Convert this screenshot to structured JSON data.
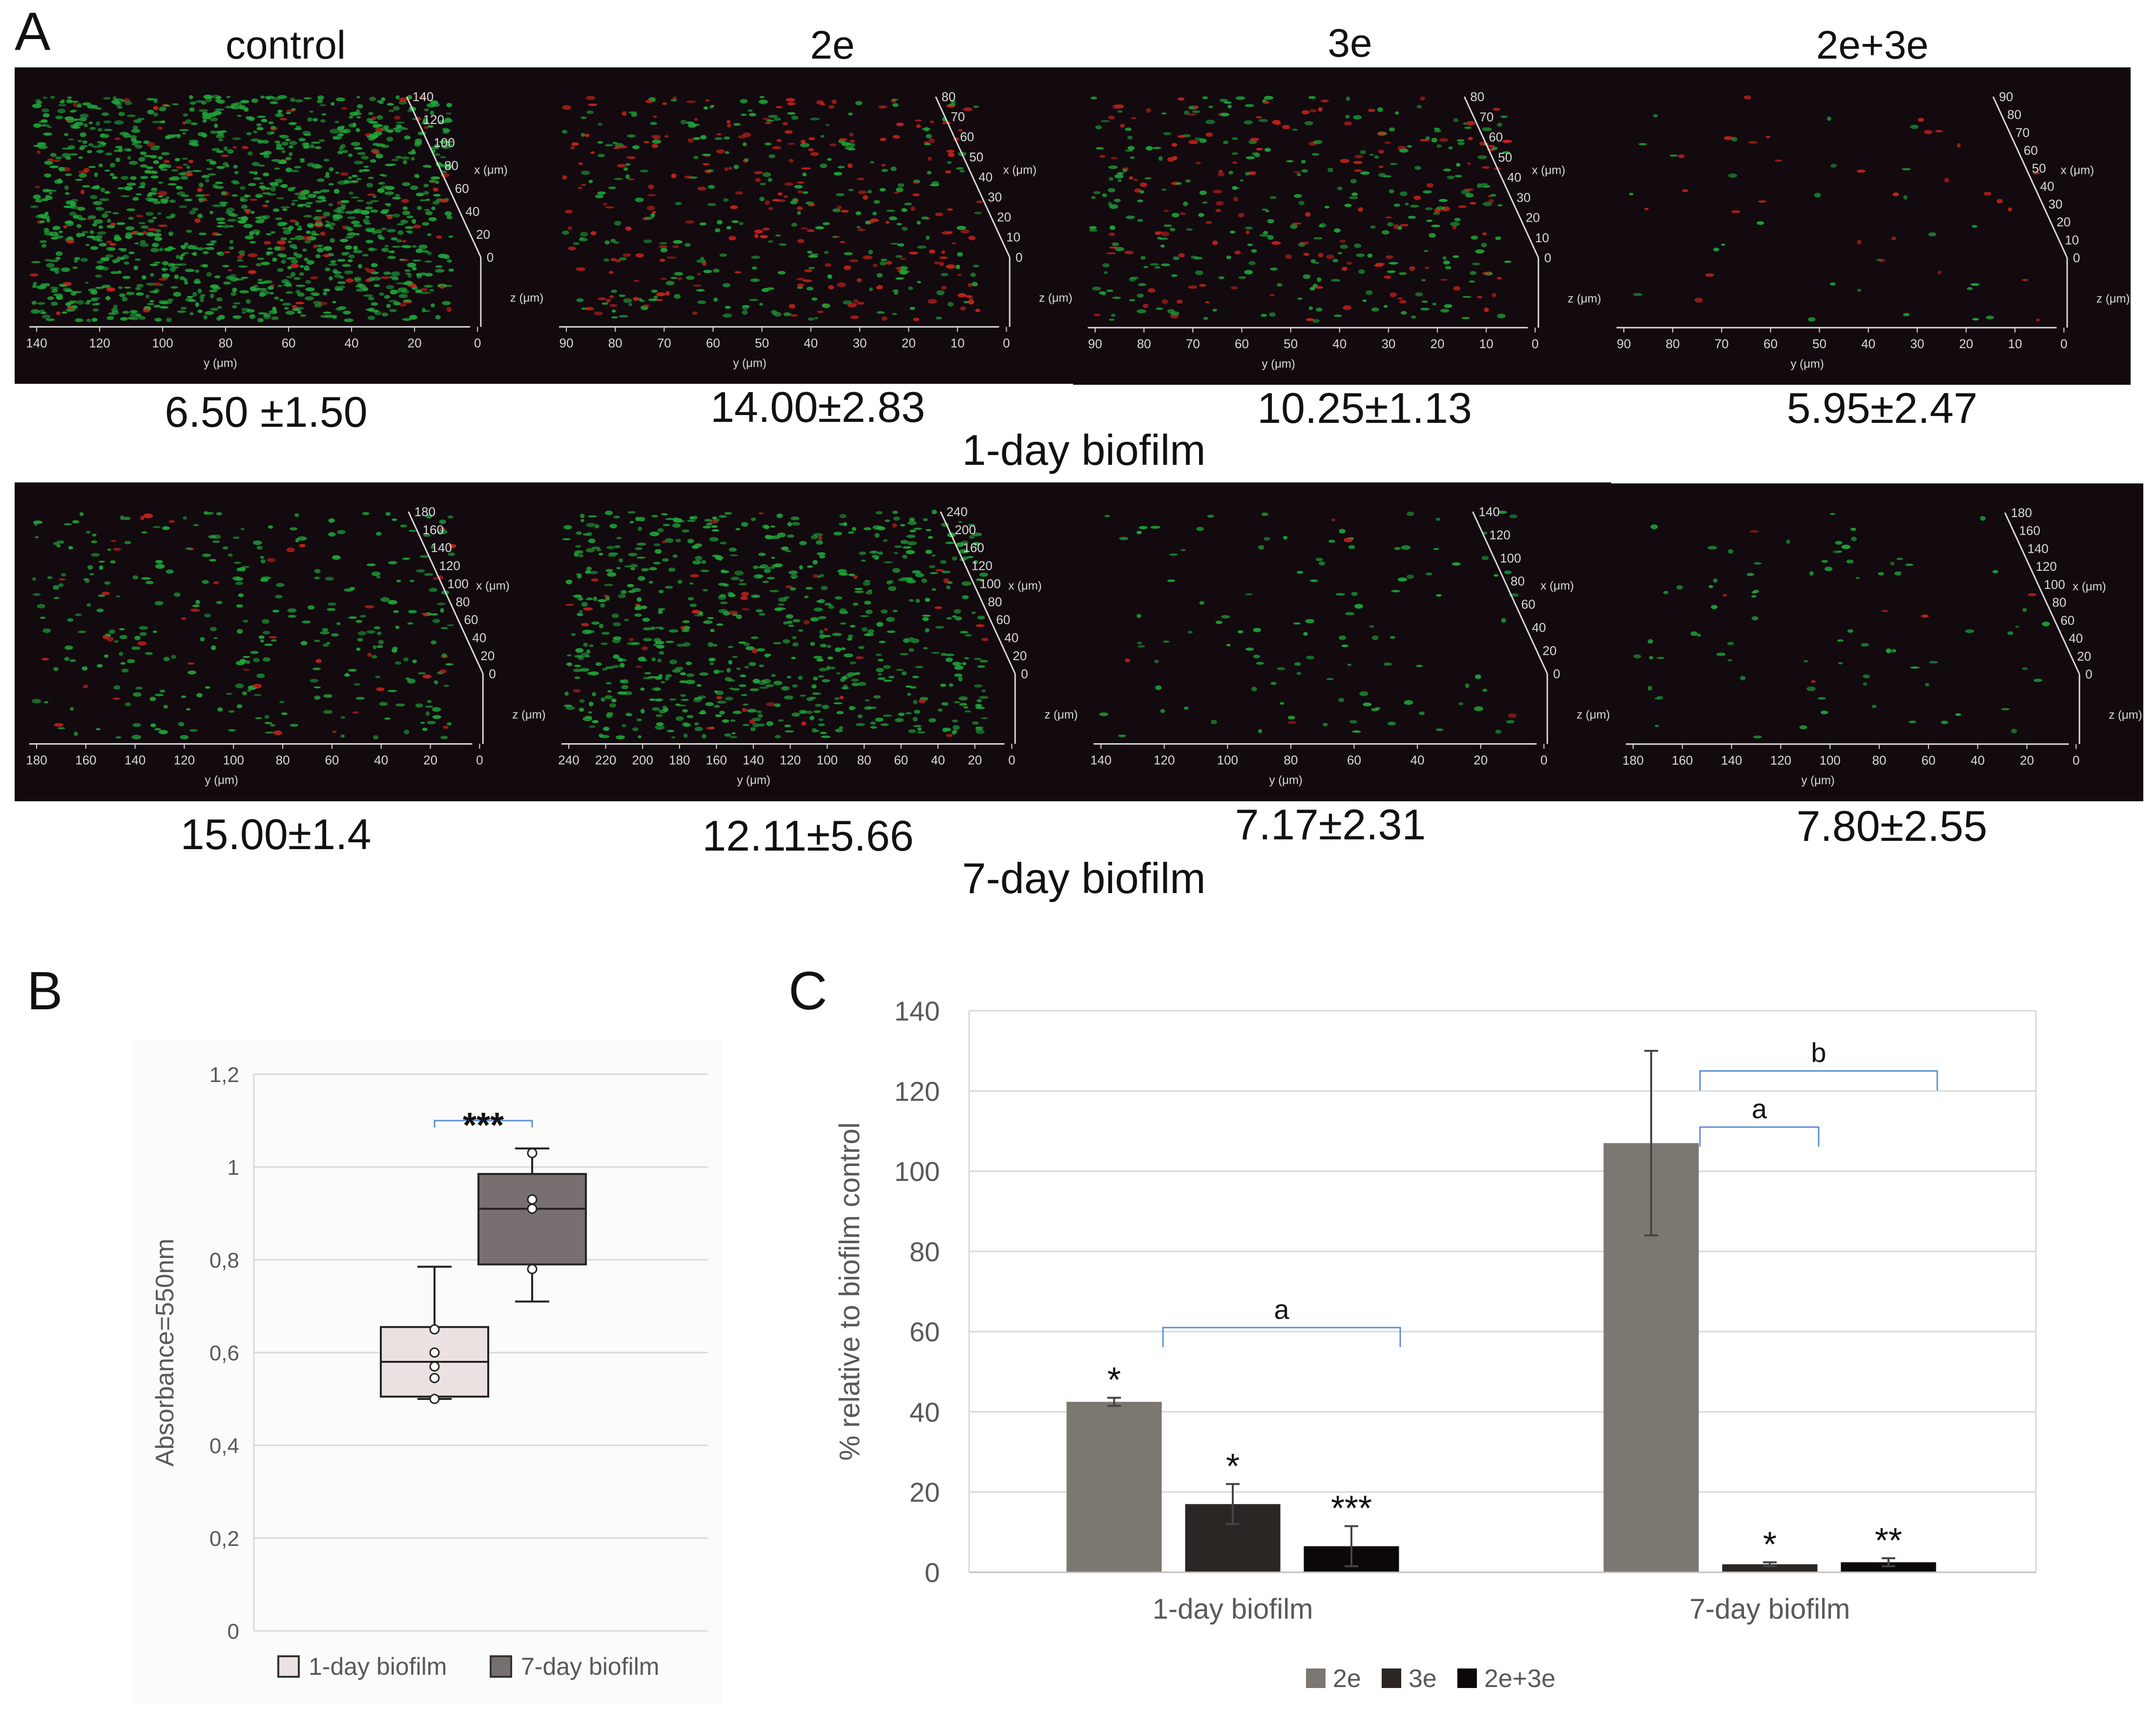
{
  "panel_a": {
    "letter": "A",
    "columns": [
      "control",
      "2e",
      "3e",
      "2e+3e"
    ],
    "rows": [
      {
        "caption": "1-day biofilm",
        "stats": [
          "6.50 ±1.50",
          "14.00±2.83",
          "10.25±1.13",
          "5.95±2.47"
        ],
        "y_ticks": [
          [
            "140",
            "120",
            "100",
            "80",
            "60",
            "40",
            "20",
            "0"
          ],
          [
            "90",
            "80",
            "70",
            "60",
            "50",
            "40",
            "30",
            "20",
            "10",
            "0"
          ],
          [
            "90",
            "80",
            "70",
            "60",
            "50",
            "40",
            "30",
            "20",
            "10",
            "0"
          ],
          [
            "90",
            "80",
            "70",
            "60",
            "50",
            "40",
            "30",
            "20",
            "10",
            "0"
          ]
        ],
        "x_ticks": [
          [
            "140",
            "120",
            "100",
            "80",
            "60",
            "40",
            "20",
            "0"
          ],
          [
            "80",
            "70",
            "60",
            "50",
            "40",
            "30",
            "20",
            "10",
            "0"
          ],
          [
            "80",
            "70",
            "60",
            "50",
            "40",
            "30",
            "20",
            "10",
            "0"
          ],
          [
            "90",
            "80",
            "70",
            "60",
            "50",
            "40",
            "30",
            "20",
            "10",
            "0"
          ]
        ],
        "density": [
          1.0,
          0.35,
          0.3,
          0.04
        ],
        "red_ratio": [
          0.08,
          0.45,
          0.35,
          0.5
        ]
      },
      {
        "caption": "7-day biofilm",
        "stats": [
          "15.00±1.4",
          "12.11±5.66",
          "7.17±2.31",
          "7.80±2.55"
        ],
        "y_ticks": [
          [
            "180",
            "160",
            "140",
            "120",
            "100",
            "80",
            "60",
            "40",
            "20",
            "0"
          ],
          [
            "240",
            "220",
            "200",
            "180",
            "160",
            "140",
            "120",
            "100",
            "80",
            "60",
            "40",
            "20",
            "0"
          ],
          [
            "140",
            "120",
            "100",
            "80",
            "60",
            "40",
            "20",
            "0"
          ],
          [
            "180",
            "160",
            "140",
            "120",
            "100",
            "80",
            "60",
            "40",
            "20",
            "0"
          ]
        ],
        "x_ticks": [
          [
            "180",
            "160",
            "140",
            "120",
            "100",
            "80",
            "60",
            "40",
            "20",
            "0"
          ],
          [
            "240",
            "200",
            "160",
            "120",
            "100",
            "80",
            "60",
            "40",
            "20",
            "0"
          ],
          [
            "140",
            "120",
            "100",
            "80",
            "60",
            "40",
            "20",
            "0"
          ],
          [
            "180",
            "160",
            "140",
            "120",
            "100",
            "80",
            "60",
            "40",
            "20",
            "0"
          ]
        ],
        "density": [
          0.25,
          0.55,
          0.08,
          0.06
        ],
        "red_ratio": [
          0.15,
          0.05,
          0.05,
          0.1
        ]
      }
    ],
    "axis_labels": {
      "y": "y (μm)",
      "x": "x (μm)",
      "z": "z (μm)"
    },
    "colors": {
      "background": "#120a0e",
      "green": "#1fa83a",
      "red": "#c8221c",
      "axis": "#d9d9d9"
    }
  },
  "chart_data": [
    {
      "panel": "B",
      "type": "box",
      "ylabel": "Absorbance=550nm",
      "ylim": [
        0,
        1.2
      ],
      "yticks": [
        "0",
        "0,2",
        "0,4",
        "0,6",
        "0,8",
        "1",
        "1,2"
      ],
      "grid": true,
      "legend_position": "bottom",
      "series": [
        {
          "name": "1-day biofilm",
          "color": "#ece1e1",
          "whisker_low": 0.5,
          "q1": 0.505,
          "median": 0.58,
          "q3": 0.655,
          "whisker_high": 0.785,
          "points": [
            0.5,
            0.545,
            0.57,
            0.6,
            0.65
          ]
        },
        {
          "name": "7-day biofilm",
          "color": "#787070",
          "whisker_low": 0.71,
          "q1": 0.79,
          "median": 0.91,
          "q3": 0.985,
          "whisker_high": 1.04,
          "points": [
            0.78,
            0.91,
            0.93,
            1.03
          ]
        }
      ],
      "annotations": [
        {
          "text": "***",
          "between": [
            0,
            1
          ],
          "y": 1.1
        }
      ]
    },
    {
      "panel": "C",
      "type": "bar",
      "ylabel": "% relative to biofilm control",
      "ylim": [
        0,
        140
      ],
      "yticks": [
        "0",
        "20",
        "40",
        "60",
        "80",
        "100",
        "120",
        "140"
      ],
      "grid": true,
      "legend_position": "bottom",
      "categories": [
        "1-day biofilm",
        "7-day biofilm"
      ],
      "series": [
        {
          "name": "2e",
          "color": "#7d7771",
          "values": [
            42.5,
            107
          ],
          "errors": [
            1,
            23
          ]
        },
        {
          "name": "3e",
          "color": "#2b2623",
          "values": [
            17,
            2
          ],
          "errors": [
            5,
            0.5
          ]
        },
        {
          "name": "2e+3e",
          "color": "#0b0807",
          "values": [
            6.5,
            2.5
          ],
          "errors": [
            5,
            1
          ]
        }
      ],
      "significance": [
        [
          "*",
          "*",
          "***"
        ],
        [
          "",
          "*",
          "**"
        ]
      ],
      "brackets": [
        {
          "text": "a",
          "category": 0,
          "from_series": 0,
          "to_series": 2,
          "y": 61
        },
        {
          "text": "a",
          "category": 1,
          "from_series": 0,
          "to_series": 1,
          "y": 111
        },
        {
          "text": "b",
          "category": 1,
          "from_series": 0,
          "to_series": 2,
          "y": 125
        }
      ]
    }
  ],
  "panel_b": {
    "letter": "B"
  },
  "panel_c": {
    "letter": "C"
  }
}
